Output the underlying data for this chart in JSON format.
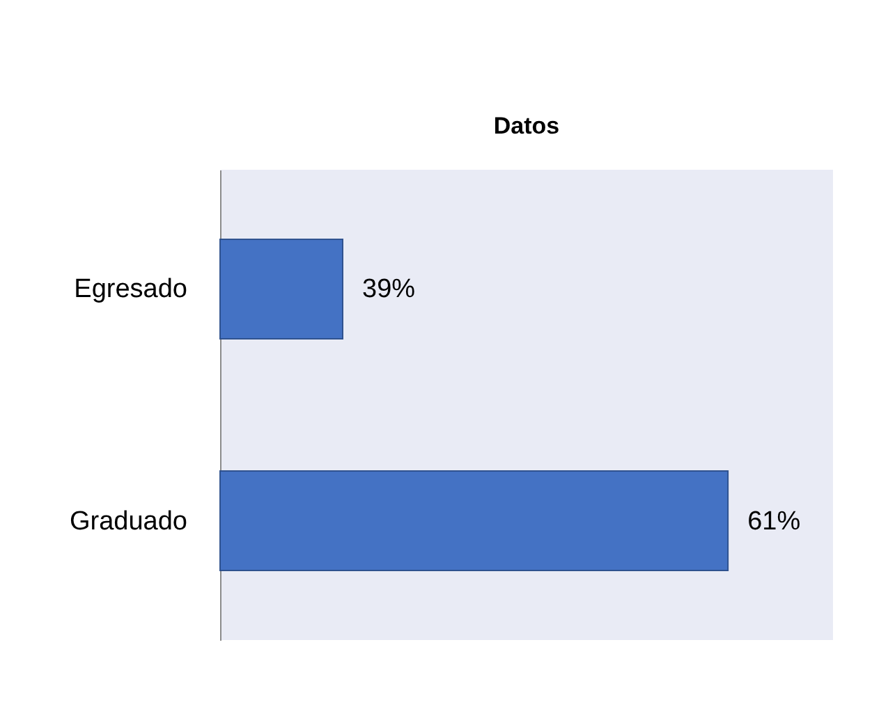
{
  "chart_data": {
    "type": "bar",
    "orientation": "horizontal",
    "title": "Datos",
    "categories": [
      "Egresado",
      "Graduado"
    ],
    "values": [
      39,
      61
    ],
    "value_labels": [
      "39%",
      "61%"
    ],
    "color": "#4472c4",
    "xlim": [
      32,
      67
    ],
    "tick_labels": "y",
    "grid": false
  }
}
